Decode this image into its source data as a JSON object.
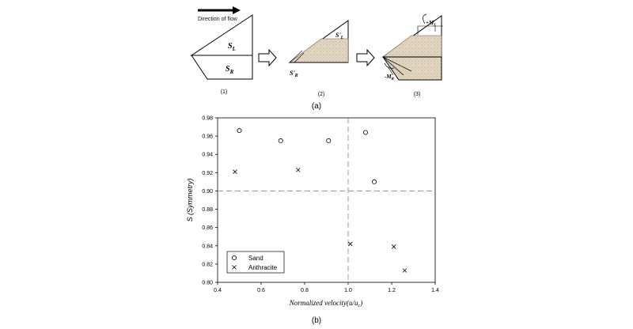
{
  "panel_a": {
    "flow_label": "Direction of flow",
    "step1": {
      "upper_label": "S",
      "upper_sub": "L",
      "lower_label": "S",
      "lower_sub": "R",
      "number": "(1)"
    },
    "step2": {
      "upper_label": "S'",
      "upper_sub": "L",
      "lower_label": "S'",
      "lower_sub": "R",
      "number": "(2)"
    },
    "step3": {
      "upper_label": "+M",
      "upper_sub": "L",
      "lower_label": "-M",
      "lower_sub": "R",
      "number": "(3)"
    },
    "caption": "(a)"
  },
  "panel_b": {
    "caption": "(b)"
  },
  "chart_data": {
    "type": "scatter",
    "xlabel": "Normalized velocity(u/u",
    "xlabel_sub": "c",
    "xlabel_close": ")",
    "ylabel": "S (Symmetry)",
    "xlim": [
      0.4,
      1.4
    ],
    "ylim": [
      0.8,
      0.98
    ],
    "xticks": [
      "0.4",
      "0.6",
      "0.8",
      "1.0",
      "1.2",
      "1.4"
    ],
    "yticks": [
      "0.80",
      "0.82",
      "0.84",
      "0.86",
      "0.88",
      "0.90",
      "0.92",
      "0.94",
      "0.96",
      "0.98"
    ],
    "reference_lines": {
      "x": 1.0,
      "y": 0.9
    },
    "series": [
      {
        "name": "Sand",
        "marker": "circle",
        "x": [
          0.5,
          0.69,
          0.91,
          1.08,
          1.12
        ],
        "y": [
          0.966,
          0.955,
          0.955,
          0.964,
          0.91
        ]
      },
      {
        "name": "Anthracite",
        "marker": "cross",
        "x": [
          0.48,
          0.77,
          1.01,
          1.21,
          1.26
        ],
        "y": [
          0.921,
          0.923,
          0.842,
          0.839,
          0.813
        ]
      }
    ],
    "legend_position": "bottom-left",
    "grid": false
  }
}
